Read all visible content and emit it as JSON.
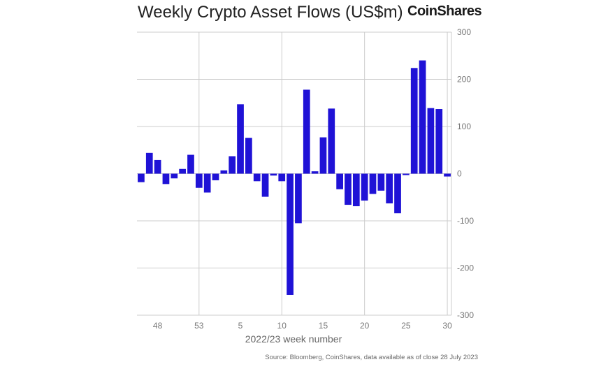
{
  "header": {
    "title": "Weekly Crypto Asset Flows (US$m)",
    "logo": "CoinShares"
  },
  "footer": {
    "source": "Source: Bloomberg, CoinShares, data available as of close 28 July 2023"
  },
  "colors": {
    "bar": "#1f12d6",
    "grid": "#cccccc",
    "tick_text": "#777777"
  },
  "chart_data": {
    "type": "bar",
    "title": "Weekly Crypto Asset Flows (US$m)",
    "xlabel": "2022/23 week number",
    "ylabel": "",
    "ylim": [
      -300,
      300
    ],
    "yticks": [
      300,
      200,
      100,
      0,
      -100,
      -200,
      -300
    ],
    "x_tick_labels": [
      {
        "category": "48",
        "label": "48"
      },
      {
        "category": "53",
        "label": "53"
      },
      {
        "category": "5",
        "label": "5"
      },
      {
        "category": "10",
        "label": "10"
      },
      {
        "category": "15",
        "label": "15"
      },
      {
        "category": "20",
        "label": "20"
      },
      {
        "category": "25",
        "label": "25"
      },
      {
        "category": "30",
        "label": "30"
      }
    ],
    "vertical_grid_at": [
      "53",
      "10",
      "20",
      "30"
    ],
    "grid": true,
    "categories": [
      "46",
      "47",
      "48",
      "49",
      "50",
      "51",
      "52",
      "53",
      "1",
      "2",
      "3",
      "4",
      "5",
      "6",
      "7",
      "8",
      "9",
      "10",
      "11",
      "12",
      "13",
      "14",
      "15",
      "16",
      "17",
      "18",
      "19",
      "20",
      "21",
      "22",
      "23",
      "24",
      "25",
      "26",
      "27",
      "28",
      "29",
      "30"
    ],
    "values": [
      -18,
      44,
      29,
      -22,
      -10,
      10,
      40,
      -30,
      -40,
      -14,
      7,
      37,
      147,
      76,
      -16,
      -49,
      -4,
      -16,
      -257,
      -105,
      178,
      5,
      77,
      138,
      -33,
      -66,
      -69,
      -57,
      -43,
      -36,
      -63,
      -84,
      -3,
      224,
      240,
      139,
      137,
      -6
    ]
  }
}
